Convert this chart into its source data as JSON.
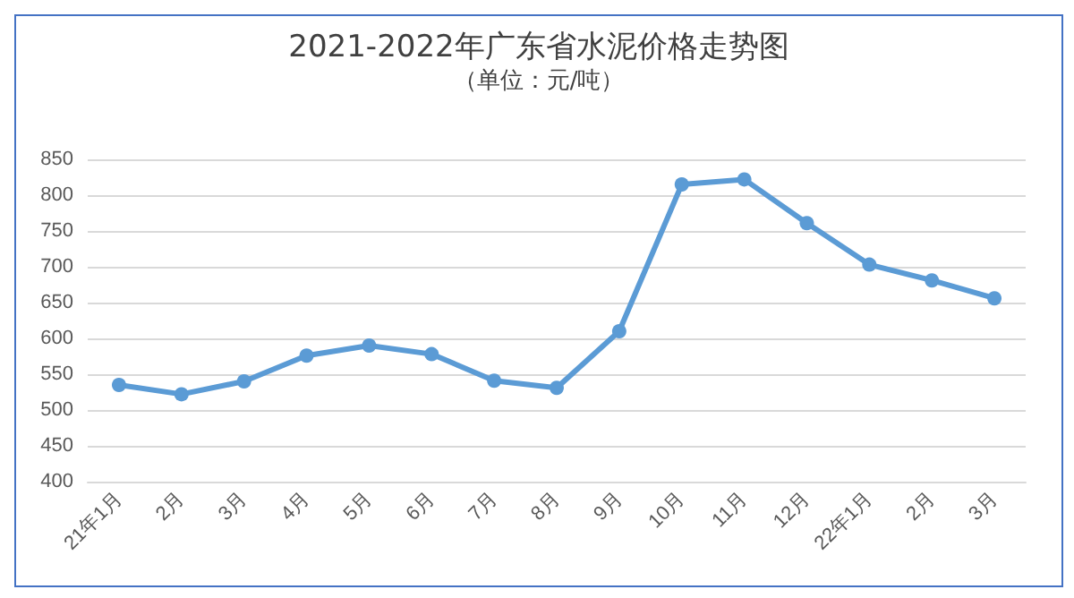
{
  "chart_data": {
    "type": "line",
    "title": "2021-2022年广东省水泥价格走势图",
    "subtitle": "（单位：元/吨）",
    "categories": [
      "21年1月",
      "2月",
      "3月",
      "4月",
      "5月",
      "6月",
      "7月",
      "8月",
      "9月",
      "10月",
      "11月",
      "12月",
      "22年1月",
      "2月",
      "3月"
    ],
    "series": [
      {
        "color": "#5b9bd5",
        "values": [
          535,
          522,
          540,
          576,
          590,
          578,
          541,
          531,
          610,
          815,
          822,
          761,
          703,
          681,
          656
        ]
      }
    ],
    "ylim": [
      400,
      850
    ],
    "yticks": [
      400,
      450,
      500,
      550,
      600,
      650,
      700,
      750,
      800,
      850
    ],
    "grid": "y",
    "marker": "circle",
    "line_style": "solid"
  }
}
